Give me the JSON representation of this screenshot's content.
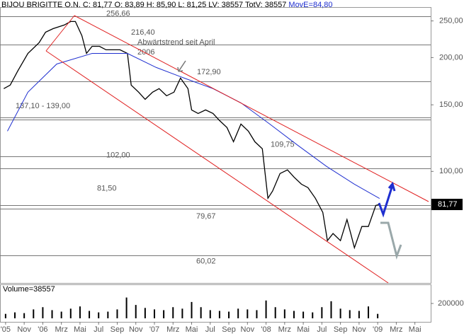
{
  "chart_data": [
    {
      "type": "line",
      "title": "BIJOU BRIGITTE O.N.",
      "subtitle": "C: 81,77 O: 83,89 H: 85,90 L: 81,25 LV: 38557 TotV: 38557",
      "ma_label": "MovE=84,80",
      "log_scale": true,
      "ylim": [
        50.7,
        272
      ],
      "yticks": [
        {
          "value": 250,
          "label": "250,00"
        },
        {
          "value": 200,
          "label": "200,00"
        },
        {
          "value": 150,
          "label": "150,00"
        },
        {
          "value": 100,
          "label": "100,00"
        }
      ],
      "xlim": [
        -0.6,
        45.7
      ],
      "xticks": [
        {
          "value": 0,
          "label": "'05"
        },
        {
          "value": 2,
          "label": "Nov"
        },
        {
          "value": 4,
          "label": "'06"
        },
        {
          "value": 6,
          "label": "Mrz"
        },
        {
          "value": 8,
          "label": "Mai"
        },
        {
          "value": 10,
          "label": "Jul"
        },
        {
          "value": 12,
          "label": "Sep"
        },
        {
          "value": 14,
          "label": "Nov"
        },
        {
          "value": 16,
          "label": "'07"
        },
        {
          "value": 18,
          "label": "Mrz"
        },
        {
          "value": 20,
          "label": "Mai"
        },
        {
          "value": 22,
          "label": "Jul"
        },
        {
          "value": 24,
          "label": "Sep"
        },
        {
          "value": 26,
          "label": "Nov"
        },
        {
          "value": 28,
          "label": "'08"
        },
        {
          "value": 30,
          "label": "Mrz"
        },
        {
          "value": 32,
          "label": "Mai"
        },
        {
          "value": 34,
          "label": "Jul"
        },
        {
          "value": 36,
          "label": "Sep"
        },
        {
          "value": 38,
          "label": "Nov"
        },
        {
          "value": 40,
          "label": "'09"
        },
        {
          "value": 42,
          "label": "Mrz"
        },
        {
          "value": 44,
          "label": "Mai"
        }
      ],
      "series": [
        {
          "name": "BIJOU BRIGITTE O.N.",
          "color": "#000000",
          "x": [
            -0.2,
            0.5,
            1.3,
            2.4,
            3.6,
            4.3,
            5.1,
            6.3,
            7.0,
            7.5,
            8.2,
            8.7,
            9.3,
            10.1,
            10.8,
            11.6,
            12.3,
            13.1,
            13.5,
            14.3,
            15.0,
            15.8,
            16.5,
            17.3,
            18.1,
            18.8,
            19.6,
            20.0,
            20.7,
            21.5,
            22.3,
            23.0,
            23.8,
            24.5,
            25.3,
            26.1,
            26.8,
            27.6,
            28.2,
            28.7,
            29.5,
            30.3,
            31.0,
            31.8,
            32.5,
            33.3,
            34.1,
            34.6,
            35.2,
            36.0,
            36.7,
            37.1,
            37.5,
            38.3,
            39.0,
            39.8,
            40.2
          ],
          "values": [
            165.5,
            169.1,
            184.3,
            205.1,
            218.9,
            233.4,
            238.5,
            243.8,
            249.1,
            249.1,
            228.5,
            205.1,
            214.2,
            214.2,
            209.7,
            209.7,
            209.7,
            205.1,
            169.1,
            162.0,
            155.1,
            162.0,
            165.5,
            158.5,
            162.0,
            176.5,
            165.5,
            145.4,
            142.3,
            145.4,
            142.3,
            136.3,
            130.6,
            119.8,
            133.4,
            127.8,
            119.8,
            114.8,
            84.9,
            88.7,
            98.7,
            100.9,
            96.6,
            92.5,
            90.6,
            84.9,
            77.9,
            65.6,
            68.5,
            65.6,
            74.6,
            68.5,
            62.8,
            71.5,
            71.5,
            81.3,
            81.77
          ]
        },
        {
          "name": "MovE",
          "color": "#1f2fd0",
          "x": [
            0.2,
            2.4,
            5.5,
            9.3,
            13.1,
            16.2,
            19.2,
            22.3,
            25.3,
            28.4,
            31.4,
            34.5,
            37.5,
            40.2
          ],
          "values": [
            127.8,
            162.0,
            192.3,
            205.1,
            205.1,
            188.3,
            176.5,
            165.5,
            151.8,
            133.4,
            117.3,
            103.1,
            92.5,
            84.8
          ]
        }
      ],
      "last_value": 81.77,
      "last_label": "81,77",
      "levels": [
        {
          "values": [
            256.66
          ],
          "label": "256,66"
        },
        {
          "values": [
            216.4
          ],
          "label": "216,40"
        },
        {
          "values": [
            172.9
          ],
          "label": "172,90"
        },
        {
          "values": [
            137.1,
            139.0
          ],
          "label": "137,10 - 139,00"
        },
        {
          "values": [
            109.75
          ],
          "label": "109,75"
        },
        {
          "values": [
            102.0
          ],
          "label": "102,00"
        },
        {
          "values": [
            81.5
          ],
          "label": "81,50"
        },
        {
          "values": [
            79.67
          ],
          "label": "79,67"
        },
        {
          "values": [
            60.02
          ],
          "label": "60,02"
        }
      ],
      "annotations": [
        "Abwärtstrend seit April",
        "2006"
      ],
      "channel_color": "#e02020"
    },
    {
      "type": "bar",
      "title": "Volume=38557",
      "color": "#000000",
      "xlim": [
        -0.6,
        45.7
      ],
      "ylim": [
        0,
        400000
      ],
      "yticks": [
        200000
      ],
      "x": [
        0,
        1,
        2,
        3,
        4,
        5,
        6,
        7,
        8,
        9,
        10,
        11,
        12,
        13,
        14,
        15,
        16,
        17,
        18,
        19,
        20,
        21,
        22,
        23,
        24,
        25,
        26,
        27,
        28,
        29,
        30,
        31,
        32,
        33,
        34,
        35,
        36,
        37,
        38,
        39,
        40
      ],
      "values": [
        60000,
        80000,
        70000,
        120000,
        150000,
        110000,
        90000,
        130000,
        160000,
        100000,
        80000,
        90000,
        120000,
        280000,
        180000,
        140000,
        120000,
        110000,
        150000,
        130000,
        220000,
        150000,
        110000,
        100000,
        90000,
        130000,
        120000,
        110000,
        240000,
        150000,
        120000,
        100000,
        90000,
        80000,
        150000,
        230000,
        130000,
        110000,
        100000,
        160000,
        60000
      ]
    }
  ]
}
